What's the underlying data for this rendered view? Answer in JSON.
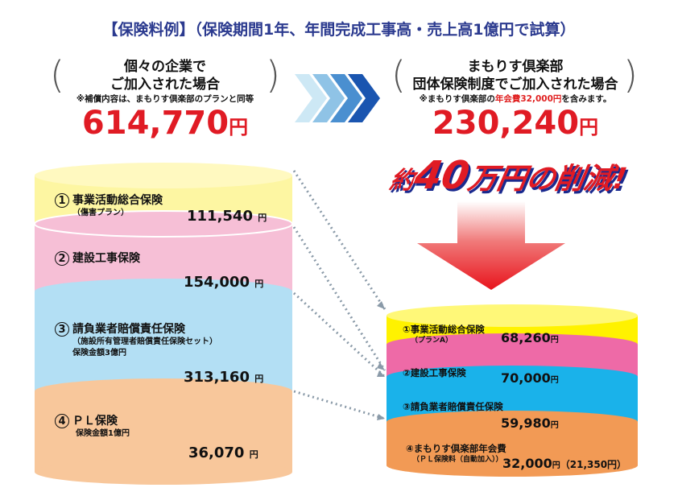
{
  "title": "【保険料例】（保険期間1年、年間完成工事高・売上高1億円で試算）",
  "left": {
    "heading_line1": "個々の企業で",
    "heading_line2": "ご加入された場合",
    "note": "※補償内容は、まもりす倶楽部のプランと同等",
    "total_amount": "614,770",
    "yen": "円",
    "segments": [
      {
        "num": "1",
        "label": "事業活動総合保険",
        "sub": "（傷害プラン）",
        "sub2": "",
        "amount": "111,540",
        "color": "#fdf6a2"
      },
      {
        "num": "2",
        "label": "建設工事保険",
        "sub": "",
        "sub2": "",
        "amount": "154,000",
        "color": "#f6bfd6"
      },
      {
        "num": "3",
        "label": "請負業者賠償責任保険",
        "sub": "（施設所有管理者賠償責任保険セット）",
        "sub2": "保険金額3億円",
        "amount": "313,160",
        "color": "#b3dff4"
      },
      {
        "num": "4",
        "label": "ＰＬ保険",
        "sub": "保険金額1億円",
        "sub2": "",
        "amount": "36,070",
        "color": "#f8c79b"
      }
    ]
  },
  "right": {
    "heading_line1": "まもりす倶楽部",
    "heading_line2": "団体保険制度でご加入された場合",
    "note_prefix": "※まもりす倶楽部の",
    "note_red": "年会費32,000円",
    "note_suffix": "を含みます。",
    "total_amount": "230,240",
    "yen": "円",
    "segments": [
      {
        "num": "①",
        "label": "事業活動総合保険",
        "sub": "（プランA）",
        "amount": "68,260",
        "extra": "",
        "color": "#fff200"
      },
      {
        "num": "②",
        "label": "建設工事保険",
        "sub": "",
        "amount": "70,000",
        "extra": "",
        "color": "#ee6aa7"
      },
      {
        "num": "③",
        "label": "請負業者賠償責任保険",
        "sub": "",
        "amount": "59,980",
        "extra": "",
        "color": "#1ab2ea"
      },
      {
        "num": "④",
        "label": "まもりす倶楽部年会費",
        "sub": "（ＰＬ保険料（自動加入））",
        "amount": "32,000",
        "extra": "（21,350円）",
        "color": "#f29a55"
      }
    ]
  },
  "savings": {
    "prefix": "約",
    "number": "40",
    "suffix": "万円の削減!"
  },
  "colors": {
    "title_blue": "#2b3a8f",
    "price_red": "#e01b24",
    "arrow_red": "#e8141c"
  }
}
